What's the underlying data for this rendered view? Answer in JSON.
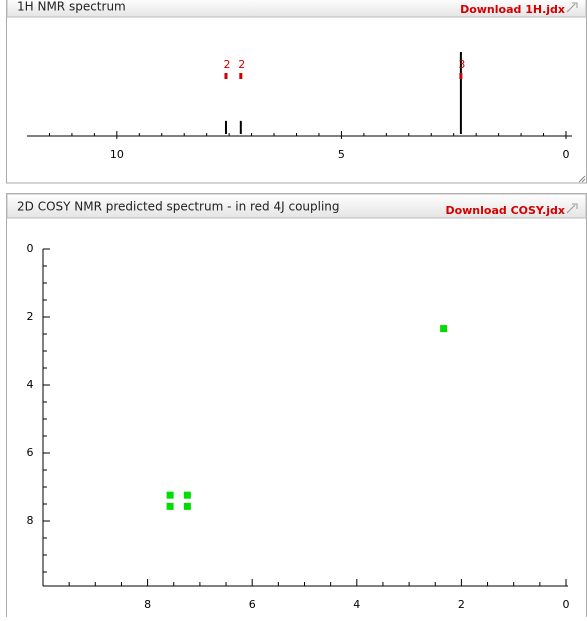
{
  "chart_data": [
    {
      "type": "stem",
      "title": "1H NMR spectrum",
      "link": "Download 1H.jdx",
      "x": [
        7.57,
        7.24,
        2.34
      ],
      "values": [
        0.16,
        0.16,
        1
      ],
      "integrals": [
        2,
        2,
        3
      ],
      "color": "#000000",
      "integral_color": "#d40000",
      "xlim": [
        12,
        0
      ],
      "ylim": [
        0,
        1
      ],
      "xticks": [
        10,
        5,
        0
      ],
      "xminorticks": [
        11.5,
        11,
        10.5,
        9.5,
        9,
        8.5,
        8,
        7.5,
        7,
        6.5,
        6,
        5.5,
        4.5,
        4,
        3.5,
        3,
        2.5,
        2,
        1.5,
        1,
        0.5
      ]
    },
    {
      "type": "scatter",
      "title": "2D COSY NMR predicted spectrum - in red 4J coupling",
      "link": "Download COSY.jdx",
      "x": [
        7.57,
        7.24,
        7.57,
        7.24,
        2.34
      ],
      "values": [
        7.24,
        7.24,
        7.57,
        7.57,
        2.34
      ],
      "color": "#00dd00",
      "xlim": [
        10,
        0
      ],
      "ylim": [
        0,
        10
      ],
      "xticks": [
        8,
        6,
        4,
        2,
        0
      ],
      "yticks": [
        0,
        2,
        4,
        6,
        8
      ],
      "xminorticks": [
        9.5,
        9,
        8.5,
        7.5,
        7,
        6.5,
        5.5,
        5,
        4.5,
        3.5,
        3,
        2.5,
        1.5,
        1,
        0.5
      ],
      "yminorticks": [
        0.5,
        1,
        1.5,
        2.5,
        3,
        3.5,
        4.5,
        5,
        5.5,
        6.5,
        7,
        7.5,
        8.5,
        9,
        9.5
      ]
    }
  ]
}
